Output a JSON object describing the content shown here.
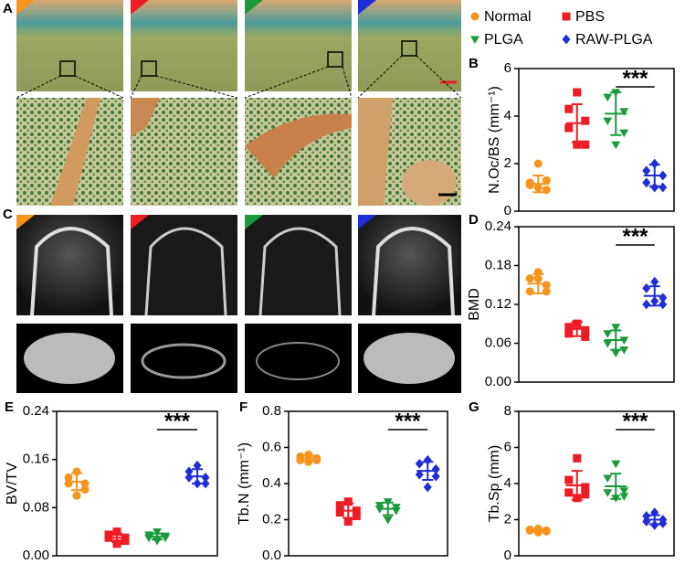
{
  "image_panels": [
    "A",
    "C"
  ],
  "groups": [
    {
      "name": "Normal",
      "color": "#f7941d",
      "marker": "circle"
    },
    {
      "name": "PBS",
      "color": "#ee1c24",
      "marker": "square"
    },
    {
      "name": "PLGA",
      "color": "#1a9a3a",
      "marker": "triangle-down"
    },
    {
      "name": "RAW-PLGA",
      "color": "#1f2ed6",
      "marker": "diamond"
    }
  ],
  "chart_data": [
    {
      "type": "dot",
      "panel": "B",
      "ylabel": "N.Oc/BS (mm⁻¹)",
      "ylim": [
        0,
        6
      ],
      "yticks": [
        0,
        2,
        4,
        6
      ],
      "annotation": "***",
      "series": [
        {
          "values": [
            1.0,
            1.2,
            0.9,
            1.1,
            1.3,
            2.0
          ],
          "mean": 1.15,
          "sd": 0.35
        },
        {
          "values": [
            5.0,
            4.3,
            3.8,
            3.5,
            2.8,
            2.8
          ],
          "mean": 3.7,
          "sd": 0.8
        },
        {
          "values": [
            5.0,
            4.8,
            4.2,
            3.8,
            3.3,
            2.8
          ],
          "mean": 4.1,
          "sd": 0.9
        },
        {
          "values": [
            2.0,
            1.7,
            1.5,
            1.2,
            1.0,
            1.0
          ],
          "mean": 1.5,
          "sd": 0.45
        }
      ]
    },
    {
      "type": "dot",
      "panel": "D",
      "ylabel": "BMD",
      "ylim": [
        0,
        0.24
      ],
      "yticks": [
        {
          "value": 0,
          "label": "0.00"
        },
        0.06,
        0.12,
        0.18,
        0.24
      ],
      "annotation": "***",
      "series": [
        {
          "values": [
            0.17,
            0.16,
            0.15,
            0.14,
            0.14,
            0.16
          ],
          "mean": 0.152,
          "sd": 0.015
        },
        {
          "values": [
            0.09,
            0.085,
            0.08,
            0.075,
            0.07,
            0.09
          ],
          "mean": 0.082,
          "sd": 0.011
        },
        {
          "values": [
            0.085,
            0.075,
            0.065,
            0.06,
            0.05,
            0.045
          ],
          "mean": 0.065,
          "sd": 0.015
        },
        {
          "values": [
            0.155,
            0.145,
            0.13,
            0.12,
            0.12,
            0.125
          ],
          "mean": 0.133,
          "sd": 0.015
        }
      ]
    },
    {
      "type": "dot",
      "panel": "E",
      "ylabel": "BV/TV",
      "ylim": [
        0,
        0.24
      ],
      "yticks": [
        {
          "value": 0,
          "label": "0.00"
        },
        0.08,
        0.16,
        0.24
      ],
      "annotation": "***",
      "series": [
        {
          "values": [
            0.14,
            0.13,
            0.12,
            0.12,
            0.11,
            0.1
          ],
          "mean": 0.123,
          "sd": 0.014
        },
        {
          "values": [
            0.04,
            0.035,
            0.03,
            0.03,
            0.025,
            0.02
          ],
          "mean": 0.03,
          "sd": 0.007
        },
        {
          "values": [
            0.04,
            0.035,
            0.033,
            0.03,
            0.03,
            0.025
          ],
          "mean": 0.032,
          "sd": 0.005
        },
        {
          "values": [
            0.15,
            0.14,
            0.13,
            0.13,
            0.12,
            0.12
          ],
          "mean": 0.132,
          "sd": 0.012
        }
      ]
    },
    {
      "type": "dot",
      "panel": "F",
      "ylabel": "Tb.N (mm⁻¹)",
      "ylim": [
        0,
        0.8
      ],
      "yticks": [
        {
          "value": 0,
          "label": "0.0"
        },
        0.2,
        0.4,
        0.6,
        0.8
      ],
      "annotation": "***",
      "series": [
        {
          "values": [
            0.56,
            0.55,
            0.54,
            0.53,
            0.53,
            0.52
          ],
          "mean": 0.54,
          "sd": 0.015
        },
        {
          "values": [
            0.3,
            0.28,
            0.25,
            0.24,
            0.22,
            0.19
          ],
          "mean": 0.25,
          "sd": 0.04
        },
        {
          "values": [
            0.3,
            0.28,
            0.27,
            0.26,
            0.25,
            0.2
          ],
          "mean": 0.26,
          "sd": 0.035
        },
        {
          "values": [
            0.53,
            0.51,
            0.48,
            0.45,
            0.44,
            0.38
          ],
          "mean": 0.47,
          "sd": 0.05
        }
      ]
    },
    {
      "type": "dot",
      "panel": "G",
      "ylabel": "Tb.Sp (mm)",
      "ylim": [
        0,
        8
      ],
      "yticks": [
        0,
        2,
        4,
        6,
        8
      ],
      "annotation": "***",
      "series": [
        {
          "values": [
            1.5,
            1.45,
            1.4,
            1.4,
            1.35,
            1.3
          ],
          "mean": 1.4,
          "sd": 0.07
        },
        {
          "values": [
            5.4,
            4.2,
            3.8,
            3.5,
            3.4,
            3.2
          ],
          "mean": 3.9,
          "sd": 0.8
        },
        {
          "values": [
            5.1,
            4.3,
            3.6,
            3.5,
            3.3,
            3.2
          ],
          "mean": 3.85,
          "sd": 0.7
        },
        {
          "values": [
            2.4,
            2.2,
            2.0,
            1.9,
            1.8,
            1.7
          ],
          "mean": 2.0,
          "sd": 0.25
        }
      ]
    }
  ]
}
